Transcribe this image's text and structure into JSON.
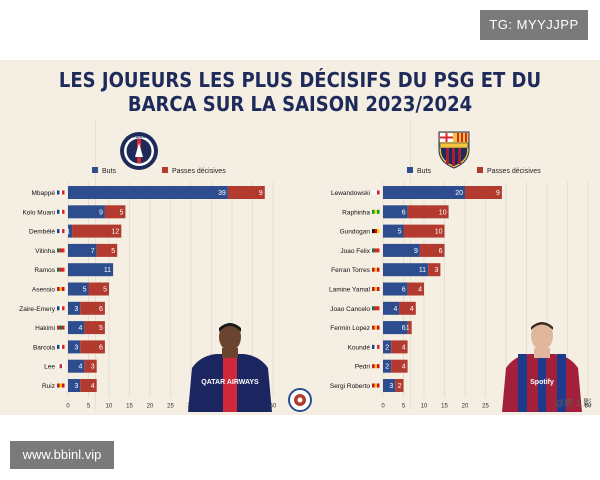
{
  "watermarks": {
    "top": "TG: MYYJJPP",
    "bottom": "www.bbinl.vip"
  },
  "title_lines": [
    "LES JOUEURS LES PLUS DÉCISIFS DU PSG ET DU",
    "BARCA SUR LA SAISON 2023/2024"
  ],
  "credit": "@鹿 1 影",
  "colors": {
    "buts": "#2d4d8e",
    "passes": "#b23a2e",
    "title": "#1e2b5a",
    "background": "#f4eee3"
  },
  "chart_data": [
    {
      "type": "bar",
      "orientation": "horizontal",
      "stacked": true,
      "team": "PSG",
      "legend": [
        "Buts",
        "Passes décisives"
      ],
      "legend_position": "top",
      "categories": [
        "Mbappé",
        "Kolo Muani",
        "Dembélé",
        "Vitinha",
        "Ramos",
        "Asensio",
        "Zaire-Emery",
        "Hakimi",
        "Barcola",
        "Lee",
        "Ruiz"
      ],
      "series": [
        {
          "name": "Buts",
          "values": [
            39,
            9,
            1,
            7,
            11,
            5,
            3,
            4,
            3,
            4,
            3
          ]
        },
        {
          "name": "Passes décisives",
          "values": [
            9,
            5,
            12,
            5,
            0,
            5,
            6,
            5,
            6,
            3,
            4
          ]
        }
      ],
      "x_ticks": [
        0,
        5,
        10,
        15,
        20,
        25,
        30,
        35,
        40,
        45,
        50
      ],
      "xlim": [
        0,
        50
      ],
      "grid": true
    },
    {
      "type": "bar",
      "orientation": "horizontal",
      "stacked": true,
      "team": "FC Barcelona",
      "legend": [
        "Buts",
        "Passes décisives"
      ],
      "legend_position": "top",
      "categories": [
        "Lewandowski",
        "Raphinha",
        "Gundogan",
        "Joao Felix",
        "Ferran Torres",
        "Lamine Yamal",
        "Joao Cancelo",
        "Fermin Lopez",
        "Koundé",
        "Pedri",
        "Sergi Roberto"
      ],
      "series": [
        {
          "name": "Buts",
          "values": [
            20,
            6,
            5,
            9,
            11,
            6,
            4,
            6,
            2,
            2,
            3
          ]
        },
        {
          "name": "Passes décisives",
          "values": [
            9,
            10,
            10,
            6,
            3,
            4,
            4,
            1,
            4,
            4,
            2
          ]
        }
      ],
      "x_ticks": [
        0,
        5,
        10,
        15,
        20,
        25,
        30,
        35,
        40,
        45,
        50
      ],
      "xlim": [
        0,
        50
      ],
      "grid": true
    }
  ],
  "flags": {
    "psg": [
      "fr",
      "fr",
      "fr",
      "pt",
      "pt",
      "es",
      "fr",
      "ma",
      "fr",
      "kr",
      "es"
    ],
    "barca": [
      "pl",
      "br",
      "de",
      "pt",
      "es",
      "es",
      "pt",
      "es",
      "fr",
      "es",
      "es"
    ]
  },
  "icons": {
    "psg_logo": "psg-crest-icon",
    "barca_logo": "barca-crest-icon",
    "psg_player": "psg-player-photo",
    "barca_player": "barca-player-photo",
    "center_logo": "club-seal-icon"
  },
  "player_jersey": {
    "psg_sponsor": "QATAR AIRWAYS",
    "barca_sponsor": "Spotify"
  }
}
